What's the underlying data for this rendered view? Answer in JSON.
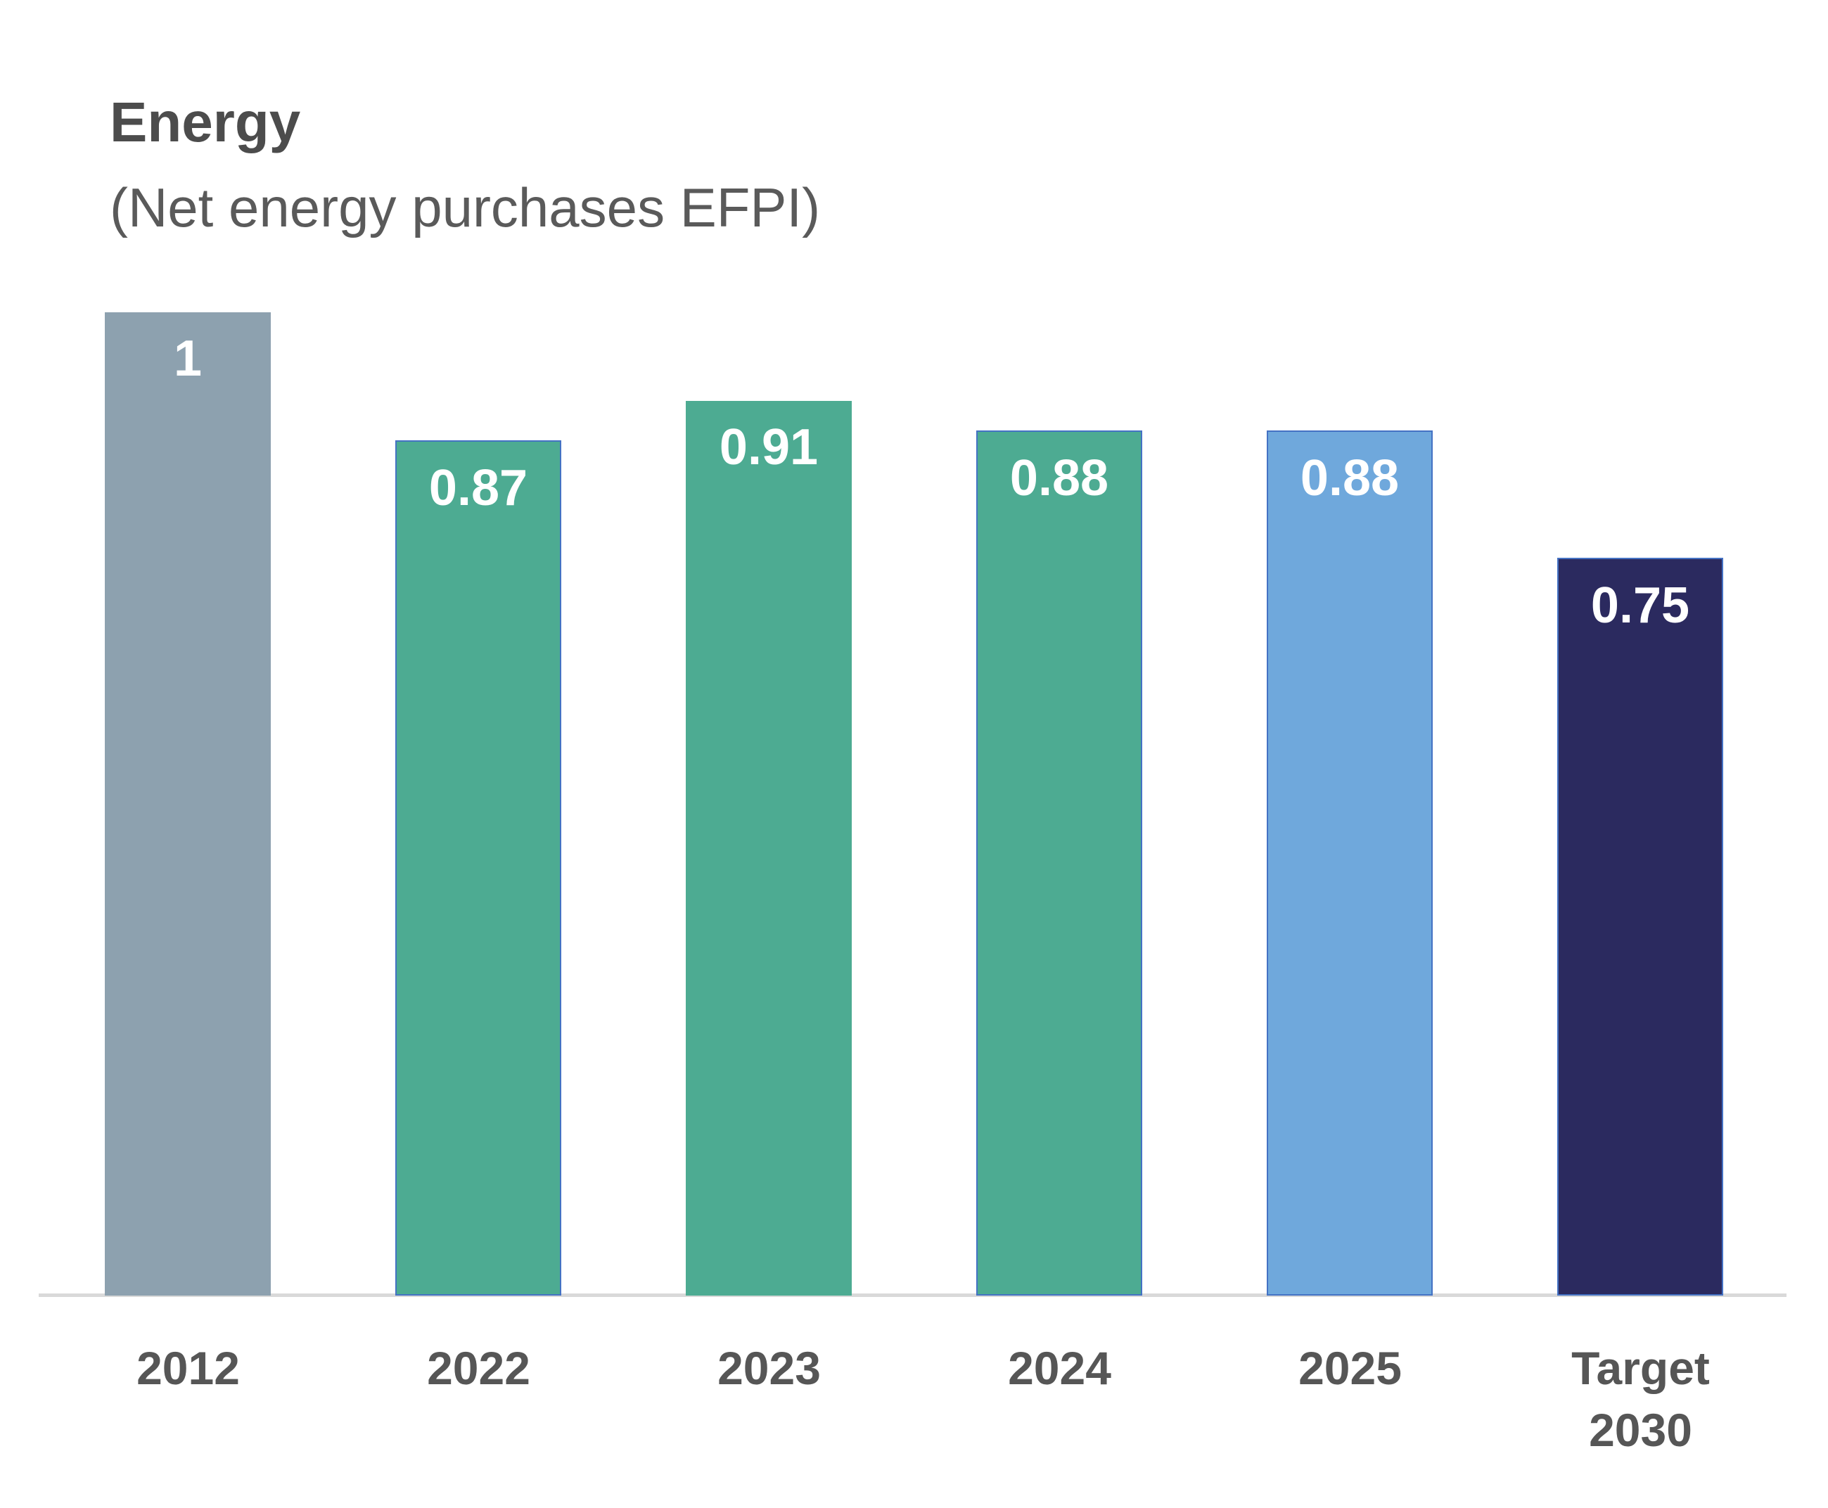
{
  "header": {
    "title": "Energy",
    "subtitle": "(Net energy purchases EFPI)"
  },
  "chart_data": {
    "type": "bar",
    "title": "Energy",
    "subtitle": "(Net energy purchases EFPI)",
    "xlabel": "",
    "ylabel": "",
    "categories": [
      "2012",
      "2022",
      "2023",
      "2024",
      "2025",
      "Target 2030"
    ],
    "tick_label_lines": [
      [
        "2012"
      ],
      [
        "2022"
      ],
      [
        "2023"
      ],
      [
        "2024"
      ],
      [
        "2025"
      ],
      [
        "Target",
        "2030"
      ]
    ],
    "values": [
      1,
      0.87,
      0.91,
      0.88,
      0.88,
      0.75
    ],
    "value_labels": [
      "1",
      "0.87",
      "0.91",
      "0.88",
      "0.88",
      "0.75"
    ],
    "ylim": [
      0,
      1.05
    ],
    "grid": false,
    "legend": false,
    "value_label_position": "inside-top",
    "value_label_color": "#FFFFFF",
    "bar_colors": [
      "#8DA1AF",
      "#4DAB92",
      "#4DAB92",
      "#4DAB92",
      "#6FA8DC",
      "#2B2A5F"
    ],
    "bar_border_colors": [
      null,
      "#4472C4",
      null,
      "#4472C4",
      "#4472C4",
      "#4472C4"
    ],
    "axis_line_color": "#D9D9D9",
    "tick_color": "#565656",
    "title_color": "#4C4C4C",
    "subtitle_color": "#5A5A5A"
  }
}
